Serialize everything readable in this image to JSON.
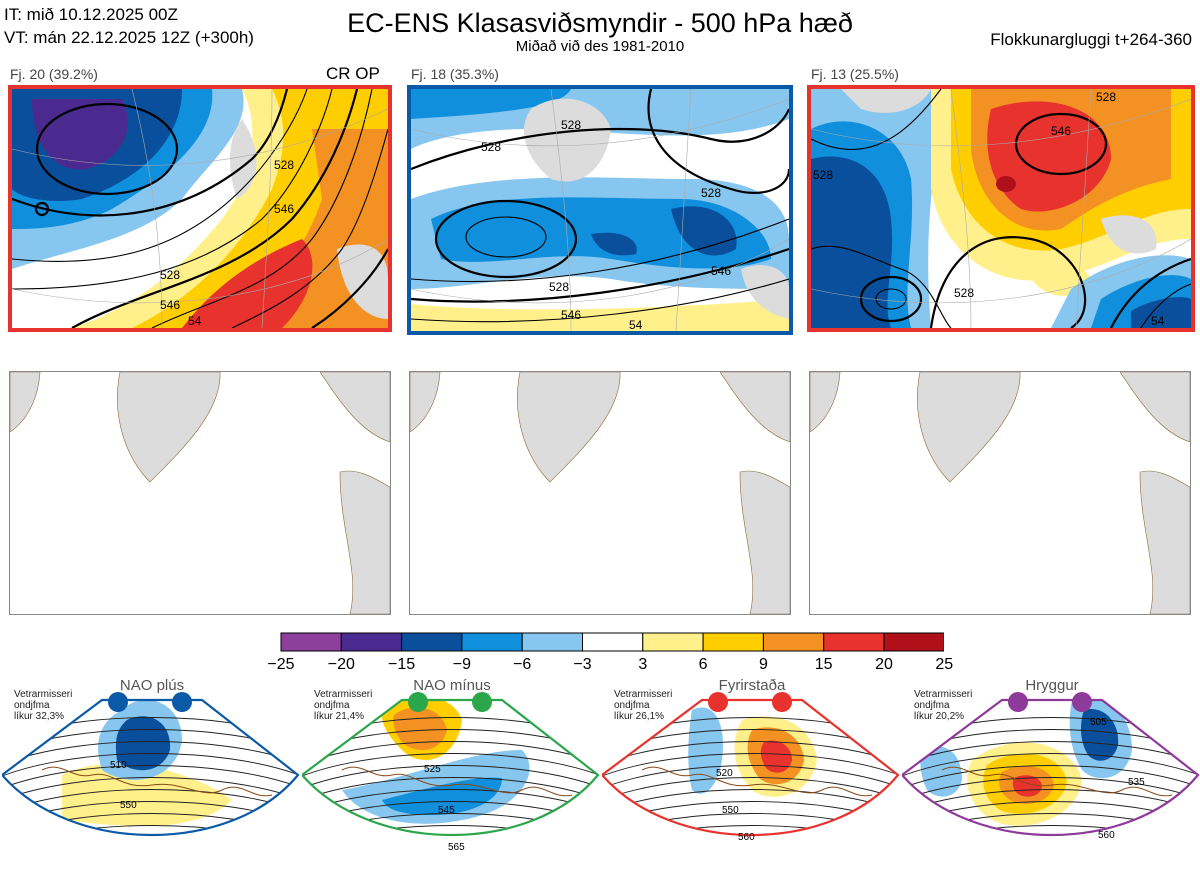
{
  "header": {
    "it_line": "IT: mið 10.12.2025 00Z",
    "vt_line": "VT: mán 22.12.2025 12Z  (+300h)",
    "title": "EC-ENS Klasasviðsmyndir - 500 hPa hæð",
    "subtitle": "Miðað við des 1981-2010",
    "window": "Flokkunargluggi t+264-360"
  },
  "clusters": [
    {
      "label": "Fj. 20 (39.2%)",
      "tag": "CR OP",
      "border_color": "#e8322d",
      "contours": [
        "528",
        "546",
        "546",
        "528",
        "54"
      ]
    },
    {
      "label": "Fj. 18 (35.3%)",
      "tag": "",
      "border_color": "#0a5aa8",
      "contours": [
        "528",
        "528",
        "528",
        "546",
        "528",
        "546",
        "54"
      ]
    },
    {
      "label": "Fj. 13 (25.5%)",
      "tag": "",
      "border_color": "#e8322d",
      "contours": [
        "546",
        "528",
        "528",
        "528",
        "54"
      ]
    }
  ],
  "colorbar": {
    "ticks": [
      "−25",
      "−20",
      "−15",
      "−9",
      "−6",
      "−3",
      "3",
      "6",
      "9",
      "15",
      "20",
      "25"
    ],
    "colors": [
      "#8c3f9b",
      "#4a2a8f",
      "#0a4f9c",
      "#0f8fdc",
      "#87c6ee",
      "#ffffff",
      "#fff08c",
      "#ffce00",
      "#f39222",
      "#e8322d",
      "#b0101a"
    ]
  },
  "regimes": [
    {
      "title": "NAO plús",
      "note": [
        "Vetrarmisseri",
        "ondjfma",
        "líkur 32,3%"
      ],
      "color": "#0a5aa8",
      "contours": [
        "510",
        "550"
      ]
    },
    {
      "title": "NAO mínus",
      "note": [
        "Vetrarmisseri",
        "ondjfma",
        "líkur 21,4%"
      ],
      "color": "#2ca64a",
      "contours": [
        "525",
        "545",
        "565"
      ]
    },
    {
      "title": "Fyrirstaða",
      "note": [
        "Vetrarmisseri",
        "ondjfma",
        "líkur 26,1%"
      ],
      "color": "#e8322d",
      "contours": [
        "520",
        "550",
        "560"
      ]
    },
    {
      "title": "Hryggur",
      "note": [
        "Vetrarmisseri",
        "ondjfma",
        "líkur 20,2%"
      ],
      "color": "#8e3a9a",
      "contours": [
        "505",
        "535",
        "560"
      ]
    }
  ]
}
